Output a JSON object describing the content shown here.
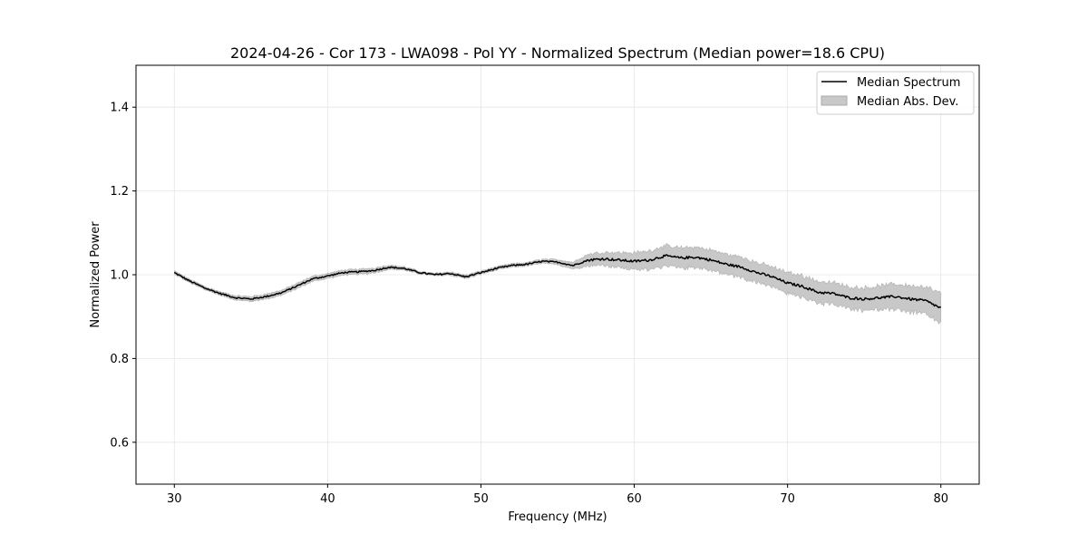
{
  "chart_data": {
    "type": "line",
    "title": "2024-04-26 - Cor 173 - LWA098 - Pol YY - Normalized Spectrum (Median power=18.6 CPU)",
    "xlabel": "Frequency (MHz)",
    "ylabel": "Normalized Power",
    "xlim": [
      27.5,
      82.5
    ],
    "ylim": [
      0.5,
      1.5
    ],
    "xticks": [
      30,
      40,
      50,
      60,
      70,
      80
    ],
    "yticks": [
      0.6,
      0.8,
      1.0,
      1.2,
      1.4
    ],
    "xtick_labels": [
      "30",
      "40",
      "50",
      "60",
      "70",
      "80"
    ],
    "ytick_labels": [
      "0.6",
      "0.8",
      "1.0",
      "1.2",
      "1.4"
    ],
    "grid": true,
    "legend_position": "top-right",
    "series": [
      {
        "name": "Median Spectrum",
        "color": "#000000",
        "x": [
          30,
          31,
          32,
          33,
          34,
          35,
          36,
          37,
          38,
          39,
          40,
          41,
          42,
          43,
          44,
          45,
          46,
          47,
          48,
          49,
          50,
          51,
          52,
          53,
          54,
          55,
          56,
          57,
          58,
          59,
          60,
          61,
          62,
          63,
          64,
          65,
          66,
          67,
          68,
          69,
          70,
          71,
          72,
          73,
          74,
          75,
          76,
          77,
          78,
          79,
          80
        ],
        "y": [
          1.005,
          0.985,
          0.968,
          0.955,
          0.945,
          0.942,
          0.948,
          0.957,
          0.973,
          0.99,
          0.997,
          1.005,
          1.007,
          1.01,
          1.018,
          1.015,
          1.005,
          1.0,
          1.003,
          0.995,
          1.005,
          1.015,
          1.022,
          1.025,
          1.032,
          1.03,
          1.022,
          1.035,
          1.038,
          1.035,
          1.032,
          1.035,
          1.045,
          1.04,
          1.042,
          1.035,
          1.025,
          1.018,
          1.005,
          0.995,
          0.98,
          0.972,
          0.958,
          0.955,
          0.945,
          0.942,
          0.945,
          0.948,
          0.942,
          0.938,
          0.92
        ]
      },
      {
        "name": "Median Abs. Dev.",
        "color": "#c8c8c8",
        "x": [
          30,
          31,
          32,
          33,
          34,
          35,
          36,
          37,
          38,
          39,
          40,
          41,
          42,
          43,
          44,
          45,
          46,
          47,
          48,
          49,
          50,
          51,
          52,
          53,
          54,
          55,
          56,
          57,
          58,
          59,
          60,
          61,
          62,
          63,
          64,
          65,
          66,
          67,
          68,
          69,
          70,
          71,
          72,
          73,
          74,
          75,
          76,
          77,
          78,
          79,
          80
        ],
        "dev": [
          0.004,
          0.004,
          0.004,
          0.004,
          0.005,
          0.006,
          0.006,
          0.006,
          0.006,
          0.006,
          0.006,
          0.006,
          0.006,
          0.006,
          0.005,
          0.004,
          0.003,
          0.003,
          0.004,
          0.004,
          0.004,
          0.004,
          0.004,
          0.004,
          0.005,
          0.006,
          0.008,
          0.014,
          0.016,
          0.018,
          0.02,
          0.022,
          0.024,
          0.024,
          0.024,
          0.024,
          0.024,
          0.024,
          0.024,
          0.024,
          0.025,
          0.026,
          0.026,
          0.026,
          0.026,
          0.027,
          0.028,
          0.03,
          0.032,
          0.033,
          0.035
        ]
      }
    ]
  }
}
